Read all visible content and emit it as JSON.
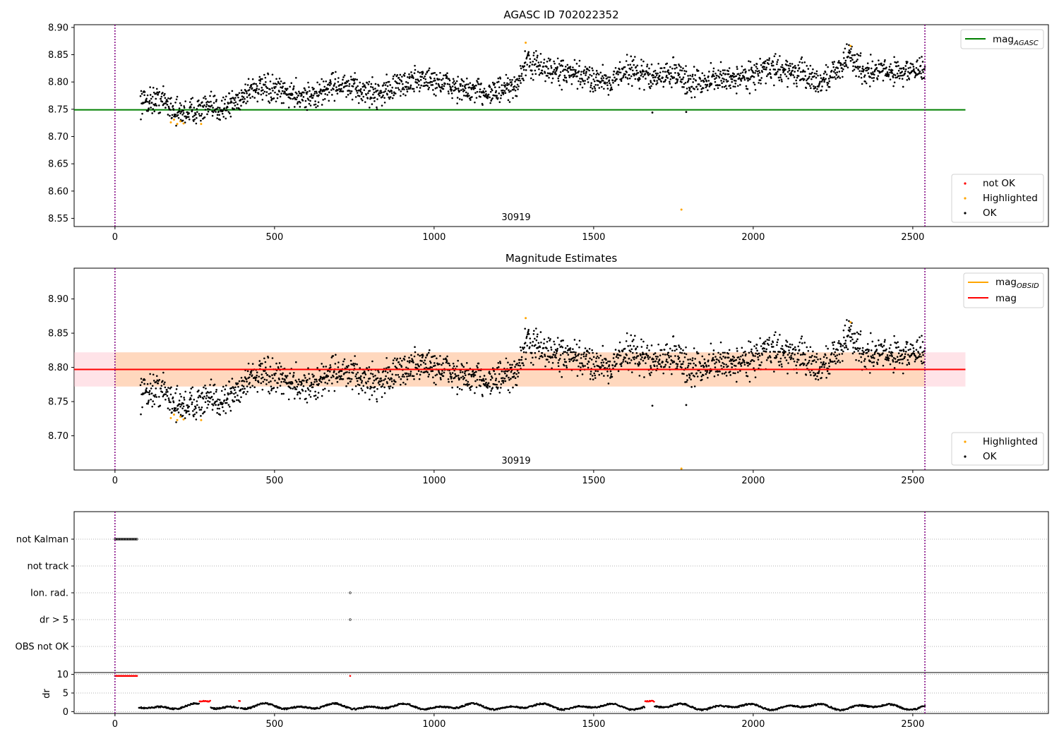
{
  "chart_data": [
    {
      "type": "scatter",
      "title": "AGASC ID 702022352",
      "xlim": [
        -128,
        2925
      ],
      "ylim": [
        8.535,
        8.905
      ],
      "xticks": [
        0,
        500,
        1000,
        1500,
        2000,
        2500
      ],
      "yticks": [
        8.55,
        8.6,
        8.65,
        8.7,
        8.75,
        8.8,
        8.85,
        8.9
      ],
      "vlines": [
        0,
        2538
      ],
      "hline": {
        "label": "mag_AGASC",
        "value": 8.749,
        "x_end": 2665,
        "color": "#008000"
      },
      "legend_top": [
        {
          "label": "mag",
          "sub": "AGASC",
          "color": "#008000"
        }
      ],
      "legend_bottom": [
        {
          "label": "not OK",
          "color": "#ff0000"
        },
        {
          "label": "Highlighted",
          "color": "#ffa500"
        },
        {
          "label": "OK",
          "color": "#000000"
        }
      ],
      "annotation": {
        "text": "30919",
        "x": 1265
      },
      "series": {
        "trend": [
          [
            80,
            8.765
          ],
          [
            150,
            8.768
          ],
          [
            200,
            8.742
          ],
          [
            260,
            8.75
          ],
          [
            330,
            8.752
          ],
          [
            380,
            8.764
          ],
          [
            430,
            8.79
          ],
          [
            500,
            8.783
          ],
          [
            560,
            8.778
          ],
          [
            630,
            8.772
          ],
          [
            680,
            8.796
          ],
          [
            760,
            8.786
          ],
          [
            820,
            8.779
          ],
          [
            880,
            8.792
          ],
          [
            960,
            8.806
          ],
          [
            1040,
            8.796
          ],
          [
            1100,
            8.783
          ],
          [
            1180,
            8.782
          ],
          [
            1250,
            8.786
          ],
          [
            1290,
            8.835
          ],
          [
            1360,
            8.822
          ],
          [
            1460,
            8.81
          ],
          [
            1560,
            8.802
          ],
          [
            1600,
            8.825
          ],
          [
            1660,
            8.812
          ],
          [
            1700,
            8.808
          ],
          [
            1760,
            8.82
          ],
          [
            1800,
            8.795
          ],
          [
            1850,
            8.803
          ],
          [
            1960,
            8.808
          ],
          [
            2060,
            8.825
          ],
          [
            2120,
            8.82
          ],
          [
            2210,
            8.8
          ],
          [
            2260,
            8.82
          ],
          [
            2300,
            8.848
          ],
          [
            2350,
            8.82
          ],
          [
            2450,
            8.82
          ],
          [
            2538,
            8.82
          ]
        ],
        "noise": 0.012,
        "highlighted": [
          [
            175,
            8.726
          ],
          [
            185,
            8.731
          ],
          [
            195,
            8.723
          ],
          [
            205,
            8.728
          ],
          [
            215,
            8.724
          ],
          [
            270,
            8.723
          ],
          [
            1287,
            8.872
          ],
          [
            2305,
            8.866
          ],
          [
            1775,
            8.566
          ]
        ],
        "outliers_ok": [
          [
            1684,
            8.744
          ],
          [
            1790,
            8.745
          ]
        ]
      }
    },
    {
      "type": "scatter",
      "title": "Magnitude Estimates",
      "xlim": [
        -128,
        2925
      ],
      "ylim": [
        8.65,
        8.945
      ],
      "xticks": [
        0,
        500,
        1000,
        1500,
        2000,
        2500
      ],
      "yticks": [
        8.7,
        8.75,
        8.8,
        8.85,
        8.9
      ],
      "vlines": [
        0,
        2538
      ],
      "band": {
        "low": 8.772,
        "high": 8.822,
        "x_end": 2665
      },
      "hline": {
        "label": "mag",
        "value": 8.797,
        "x_end": 2665,
        "color": "#ff0000"
      },
      "obsid_segment": {
        "label": "mag_OBSID",
        "value": 8.797,
        "x_start": 0,
        "x_end": 2538,
        "color": "#ffa500"
      },
      "legend_top": [
        {
          "label": "mag",
          "sub": "OBSID",
          "color": "#ffa500"
        },
        {
          "label": "mag",
          "sub": "",
          "color": "#ff0000"
        }
      ],
      "legend_bottom": [
        {
          "label": "Highlighted",
          "color": "#ffa500"
        },
        {
          "label": "OK",
          "color": "#000000"
        }
      ],
      "annotation": {
        "text": "30919",
        "x": 1265
      }
    },
    {
      "type": "scatter",
      "title": "",
      "xlim": [
        -128,
        2925
      ],
      "categories": [
        "not Kalman",
        "not track",
        "Ion. rad.",
        "dr > 5",
        "OBS not OK"
      ],
      "flags": {
        "not Kalman": [
          0,
          70
        ],
        "Ion. rad.": [
          737
        ],
        "dr > 5": [
          737
        ]
      },
      "dr": {
        "yticks": [
          0,
          5,
          10
        ],
        "ylabel": "dr",
        "ylim": [
          -0.5,
          10.5
        ],
        "cap_points": [
          0,
          70,
          737
        ],
        "red_segments": [
          [
            265,
            300
          ],
          [
            388,
            392
          ],
          [
            1660,
            1690
          ]
        ],
        "range": [
          75,
          2538
        ]
      },
      "xticks": [
        0,
        500,
        1000,
        1500,
        2000,
        2500
      ],
      "vlines": [
        0,
        2538
      ]
    }
  ]
}
